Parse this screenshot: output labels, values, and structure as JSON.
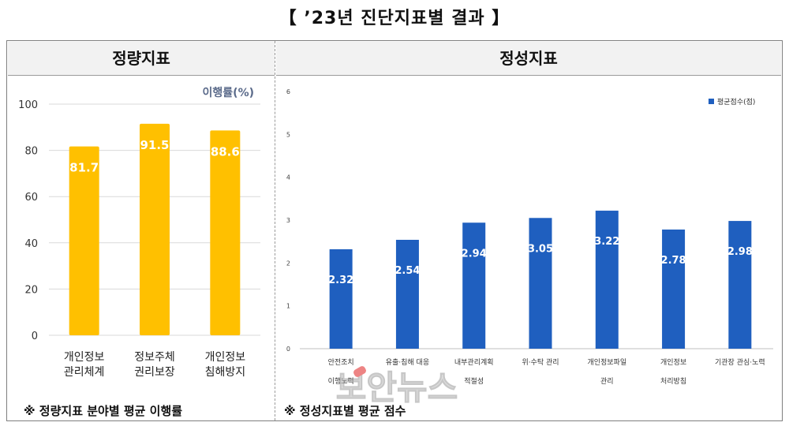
{
  "title": "【  ’23년  진단지표별  결과  】",
  "headers": {
    "left": "정량지표",
    "right": "정성지표"
  },
  "footnotes": {
    "left": "※  정량지표  분야별  평균  이행률",
    "right": "※  정성지표별  평균  점수"
  },
  "watermark": "보안뉴스",
  "colors": {
    "left_bar": "#FFC000",
    "right_bar": "#1F5FBF",
    "grid": "#d9d9d9",
    "header_bg": "#f2f2f2"
  },
  "chart_data": [
    {
      "type": "bar",
      "title": "",
      "unit_label": "이행률(%)",
      "categories": [
        [
          "개인정보",
          "관리체계"
        ],
        [
          "정보주체",
          "권리보장"
        ],
        [
          "개인정보",
          "침해방지"
        ]
      ],
      "values": [
        81.7,
        91.5,
        88.6
      ],
      "value_labels": [
        "81.7",
        "91.5",
        "88.6"
      ],
      "ylim": [
        0,
        100
      ],
      "yticks": [
        "0",
        "20",
        "40",
        "60",
        "80",
        "100"
      ],
      "grid": true
    },
    {
      "type": "bar",
      "title": "",
      "categories": [
        [
          "안전조치",
          "이행노력"
        ],
        [
          "유출·침해 대응"
        ],
        [
          "내부관리계획",
          "적절성"
        ],
        [
          "위·수탁 관리"
        ],
        [
          "개인정보파일",
          "관리"
        ],
        [
          "개인정보",
          "처리방침"
        ],
        [
          "기관장 관심·노력"
        ]
      ],
      "values": [
        2.32,
        2.54,
        2.94,
        3.05,
        3.22,
        2.78,
        2.98
      ],
      "value_labels": [
        "2.32",
        "2.54",
        "2.94",
        "3.05",
        "3.22",
        "2.78",
        "2.98"
      ],
      "series": [
        {
          "name": "평균점수(점)",
          "values": [
            2.32,
            2.54,
            2.94,
            3.05,
            3.22,
            2.78,
            2.98
          ]
        }
      ],
      "ylim": [
        0,
        6
      ],
      "yticks": [
        "0",
        "1",
        "2",
        "3",
        "4",
        "5",
        "6"
      ],
      "legend": "top-right",
      "grid": false
    }
  ]
}
